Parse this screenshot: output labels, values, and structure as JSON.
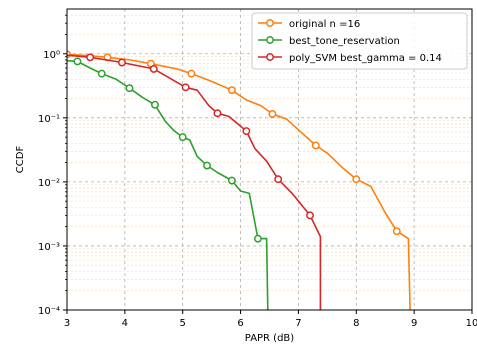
{
  "chart_data": {
    "type": "line",
    "xlabel": "PAPR (dB)",
    "ylabel": "CCDF",
    "xlim": [
      3,
      10
    ],
    "ylim": [
      0.0001,
      5
    ],
    "yscale": "log",
    "grid": true,
    "minor_grid": true,
    "legend_position": "top-right",
    "x_ticks": [
      3,
      4,
      5,
      6,
      7,
      8,
      9,
      10
    ],
    "x_tick_labels": [
      "3",
      "4",
      "5",
      "6",
      "7",
      "8",
      "9",
      "10"
    ],
    "y_ticks": [
      0.0001,
      0.001,
      0.01,
      0.1,
      1
    ],
    "y_tick_labels": [
      "10⁻⁴",
      "10⁻³",
      "10⁻²",
      "10⁻¹",
      "10⁰"
    ],
    "series": [
      {
        "name": "original n =16",
        "color": "#ff7f0e",
        "x": [
          3.0,
          3.35,
          3.7,
          4.1,
          4.45,
          4.9,
          5.15,
          5.5,
          5.85,
          6.1,
          6.35,
          6.55,
          6.8,
          7.0,
          7.3,
          7.5,
          7.75,
          8.0,
          8.25,
          8.5,
          8.7,
          8.9,
          8.93
        ],
        "y": [
          0.98,
          0.94,
          0.88,
          0.8,
          0.7,
          0.58,
          0.49,
          0.37,
          0.27,
          0.19,
          0.155,
          0.115,
          0.095,
          0.065,
          0.037,
          0.028,
          0.017,
          0.011,
          0.0085,
          0.0033,
          0.0017,
          0.0013,
          0.0001
        ],
        "markers": [
          [
            3.0,
            0.98
          ],
          [
            3.7,
            0.88
          ],
          [
            4.45,
            0.7
          ],
          [
            5.15,
            0.49
          ],
          [
            5.85,
            0.27
          ],
          [
            6.55,
            0.115
          ],
          [
            7.3,
            0.037
          ],
          [
            8.0,
            0.011
          ],
          [
            8.7,
            0.0017
          ]
        ]
      },
      {
        "name": "best_tone_reservation",
        "color": "#2ca02c",
        "x": [
          3.0,
          3.18,
          3.4,
          3.6,
          3.85,
          4.08,
          4.3,
          4.52,
          4.7,
          4.85,
          5.0,
          5.12,
          5.25,
          5.42,
          5.6,
          5.85,
          6.0,
          6.15,
          6.3,
          6.45,
          6.47
        ],
        "y": [
          0.78,
          0.76,
          0.6,
          0.49,
          0.4,
          0.29,
          0.21,
          0.16,
          0.088,
          0.063,
          0.05,
          0.045,
          0.025,
          0.018,
          0.014,
          0.0105,
          0.0072,
          0.0066,
          0.0013,
          0.0013,
          0.0001
        ],
        "markers": [
          [
            3.18,
            0.76
          ],
          [
            3.6,
            0.49
          ],
          [
            4.08,
            0.29
          ],
          [
            4.52,
            0.16
          ],
          [
            5.0,
            0.05
          ],
          [
            5.42,
            0.018
          ],
          [
            5.85,
            0.0105
          ],
          [
            6.3,
            0.0013
          ]
        ]
      },
      {
        "name": "poly_SVM best_gamma = 0.14",
        "color": "#d62728",
        "x": [
          3.0,
          3.4,
          3.95,
          4.5,
          5.05,
          5.25,
          5.45,
          5.6,
          5.8,
          6.1,
          6.25,
          6.45,
          6.65,
          6.9,
          7.2,
          7.38,
          7.38
        ],
        "y": [
          0.95,
          0.88,
          0.73,
          0.58,
          0.3,
          0.27,
          0.155,
          0.118,
          0.105,
          0.062,
          0.033,
          0.021,
          0.011,
          0.0065,
          0.003,
          0.0014,
          0.0001
        ],
        "markers": [
          [
            3.4,
            0.88
          ],
          [
            3.95,
            0.73
          ],
          [
            4.5,
            0.58
          ],
          [
            5.05,
            0.3
          ],
          [
            5.6,
            0.118
          ],
          [
            6.1,
            0.062
          ],
          [
            6.65,
            0.011
          ],
          [
            7.2,
            0.003
          ]
        ]
      }
    ]
  }
}
